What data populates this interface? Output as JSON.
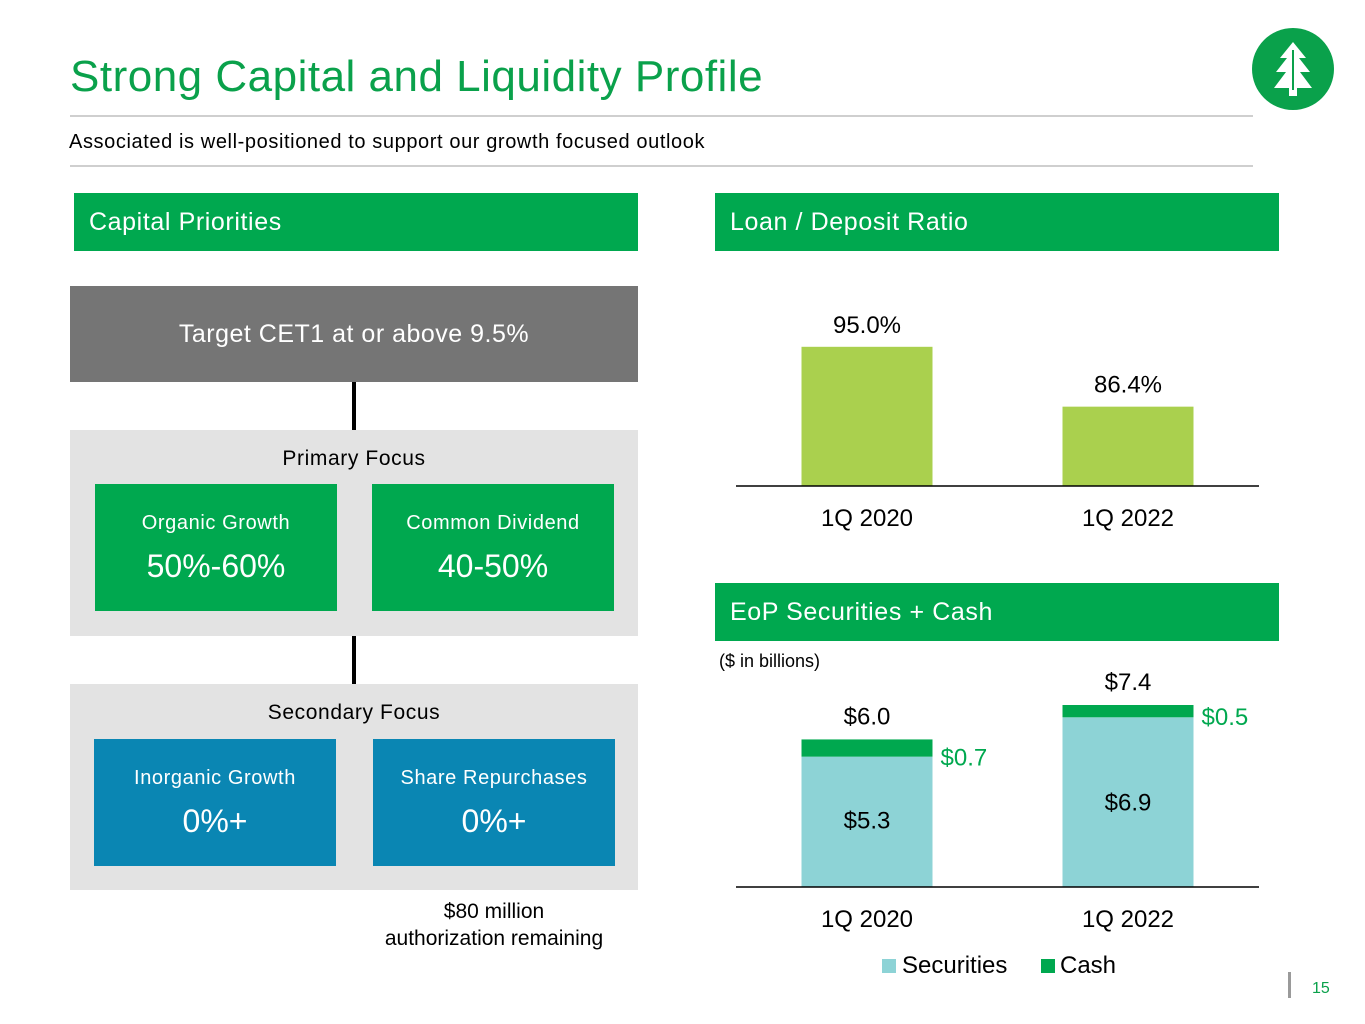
{
  "header": {
    "title": "Strong Capital and Liquidity Profile",
    "subtitle": "Associated is well-positioned to support our growth focused outlook"
  },
  "capital": {
    "heading": "Capital Priorities",
    "target": "Target CET1 at or above 9.5%",
    "primary": {
      "label": "Primary Focus",
      "boxes": [
        {
          "label": "Organic Growth",
          "value": "50%-60%"
        },
        {
          "label": "Common Dividend",
          "value": "40-50%"
        }
      ]
    },
    "secondary": {
      "label": "Secondary Focus",
      "boxes": [
        {
          "label": "Inorganic Growth",
          "value": "0%+"
        },
        {
          "label": "Share Repurchases",
          "value": "0%+"
        }
      ]
    },
    "note_line1": "$80 million",
    "note_line2": "authorization remaining"
  },
  "loan_deposit": {
    "heading": "Loan / Deposit Ratio"
  },
  "securities": {
    "heading": "EoP Securities + Cash",
    "units": "($ in billions)"
  },
  "page_number": "15",
  "colors": {
    "green": "#00a84f",
    "blue": "#0a86b3",
    "lime": "#aad04e",
    "teal": "#8dd3d6",
    "gray": "#757575"
  },
  "chart_data": [
    {
      "type": "bar",
      "title": "Loan / Deposit Ratio",
      "categories": [
        "1Q 2020",
        "1Q 2022"
      ],
      "values": [
        95.0,
        86.4
      ],
      "value_labels": [
        "95.0%",
        "86.4%"
      ],
      "ylim": [
        75,
        100
      ],
      "xlabel": "",
      "ylabel": ""
    },
    {
      "type": "bar",
      "stacked": true,
      "title": "EoP Securities + Cash",
      "categories": [
        "1Q 2020",
        "1Q 2022"
      ],
      "series": [
        {
          "name": "Securities",
          "values": [
            5.3,
            6.9
          ],
          "labels": [
            "$5.3",
            "$6.9"
          ]
        },
        {
          "name": "Cash",
          "values": [
            0.7,
            0.5
          ],
          "labels": [
            "$0.7",
            "$0.5"
          ]
        }
      ],
      "totals": [
        6.0,
        7.4
      ],
      "total_labels": [
        "$6.0",
        "$7.4"
      ],
      "ylim": [
        0,
        7.4
      ],
      "legend": "bottom",
      "xlabel": "",
      "ylabel": ""
    }
  ]
}
